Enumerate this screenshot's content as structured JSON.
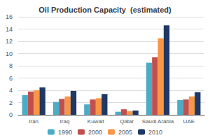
{
  "chart_data": {
    "type": "bar",
    "title": "Oil Production Capacity  (estimated)",
    "categories": [
      "Iran",
      "Iraq",
      "Kuwait",
      "Qatar",
      "Saudi Arabia",
      "UAE"
    ],
    "series": [
      {
        "name": "1990",
        "color": "#4BACC6",
        "values": [
          3.2,
          2.1,
          1.7,
          0.5,
          8.5,
          2.4
        ]
      },
      {
        "name": "2000",
        "color": "#C0504D",
        "values": [
          3.8,
          2.6,
          2.5,
          0.9,
          9.4,
          2.5
        ]
      },
      {
        "name": "2005",
        "color": "#F79646",
        "values": [
          4.0,
          3.0,
          2.7,
          0.6,
          12.5,
          3.0
        ]
      },
      {
        "name": "2010",
        "color": "#1F3864",
        "values": [
          4.5,
          3.9,
          3.4,
          0.7,
          14.6,
          3.7
        ]
      }
    ],
    "ylim": [
      0,
      16
    ],
    "yticks": [
      0,
      2,
      4,
      6,
      8,
      10,
      12,
      14,
      16
    ],
    "grid": true,
    "legend": "bottom"
  }
}
